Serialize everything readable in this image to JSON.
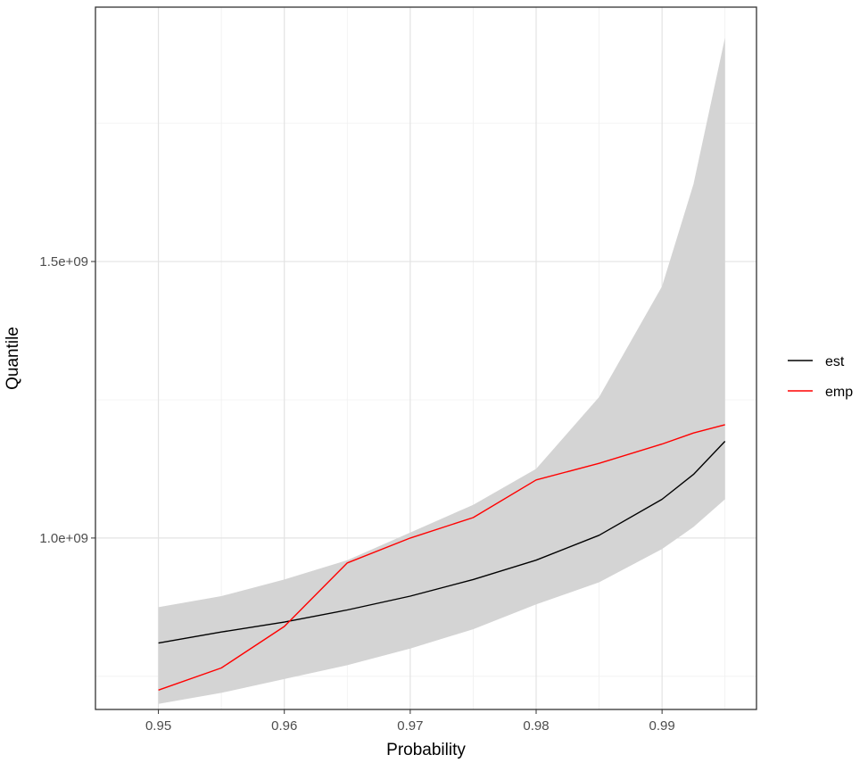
{
  "chart_data": {
    "type": "line",
    "title": "",
    "xlabel": "Probability",
    "ylabel": "Quantile",
    "xlim": [
      0.945,
      0.9975
    ],
    "ylim": [
      690000000,
      1960000000
    ],
    "x_ticks": [
      0.95,
      0.96,
      0.97,
      0.98,
      0.99
    ],
    "x_tick_labels": [
      "0.95",
      "0.96",
      "0.97",
      "0.98",
      "0.99"
    ],
    "y_ticks": [
      1000000000,
      1500000000
    ],
    "y_tick_labels": [
      "1.0e+09",
      "1.5e+09"
    ],
    "y_minor_ticks": [
      750000000,
      1250000000,
      1750000000
    ],
    "x_minor_ticks": [
      0.955,
      0.965,
      0.975,
      0.985,
      0.995
    ],
    "grid": true,
    "legend_position": "right",
    "ribbon": {
      "x": [
        0.95,
        0.955,
        0.96,
        0.965,
        0.97,
        0.975,
        0.98,
        0.985,
        0.99,
        0.9925,
        0.995
      ],
      "lower": [
        700000000,
        720000000,
        745000000,
        770000000,
        800000000,
        835000000,
        880000000,
        920000000,
        980000000,
        1020000000,
        1070000000
      ],
      "upper": [
        875000000,
        895000000,
        925000000,
        960000000,
        1010000000,
        1060000000,
        1125000000,
        1255000000,
        1455000000,
        1640000000,
        1905000000
      ]
    },
    "series": [
      {
        "name": "est",
        "color": "#000000",
        "x": [
          0.95,
          0.955,
          0.96,
          0.965,
          0.97,
          0.975,
          0.98,
          0.985,
          0.99,
          0.9925,
          0.995
        ],
        "values": [
          810000000,
          830000000,
          848000000,
          870000000,
          895000000,
          925000000,
          960000000,
          1005000000,
          1070000000,
          1115000000,
          1175000000
        ]
      },
      {
        "name": "emp",
        "color": "#ff0000",
        "x": [
          0.95,
          0.955,
          0.96,
          0.965,
          0.97,
          0.975,
          0.98,
          0.985,
          0.99,
          0.9925,
          0.995
        ],
        "values": [
          725000000,
          765000000,
          840000000,
          955000000,
          1000000000,
          1037000000,
          1105000000,
          1135000000,
          1170000000,
          1190000000,
          1205000000
        ]
      }
    ]
  },
  "legend": {
    "items": [
      {
        "label": "est",
        "color": "#000000"
      },
      {
        "label": "emp",
        "color": "#ff0000"
      }
    ]
  },
  "colors": {
    "ribbon": "#d4d4d4",
    "panel_border": "#333333",
    "grid": "#e3e3e3"
  }
}
